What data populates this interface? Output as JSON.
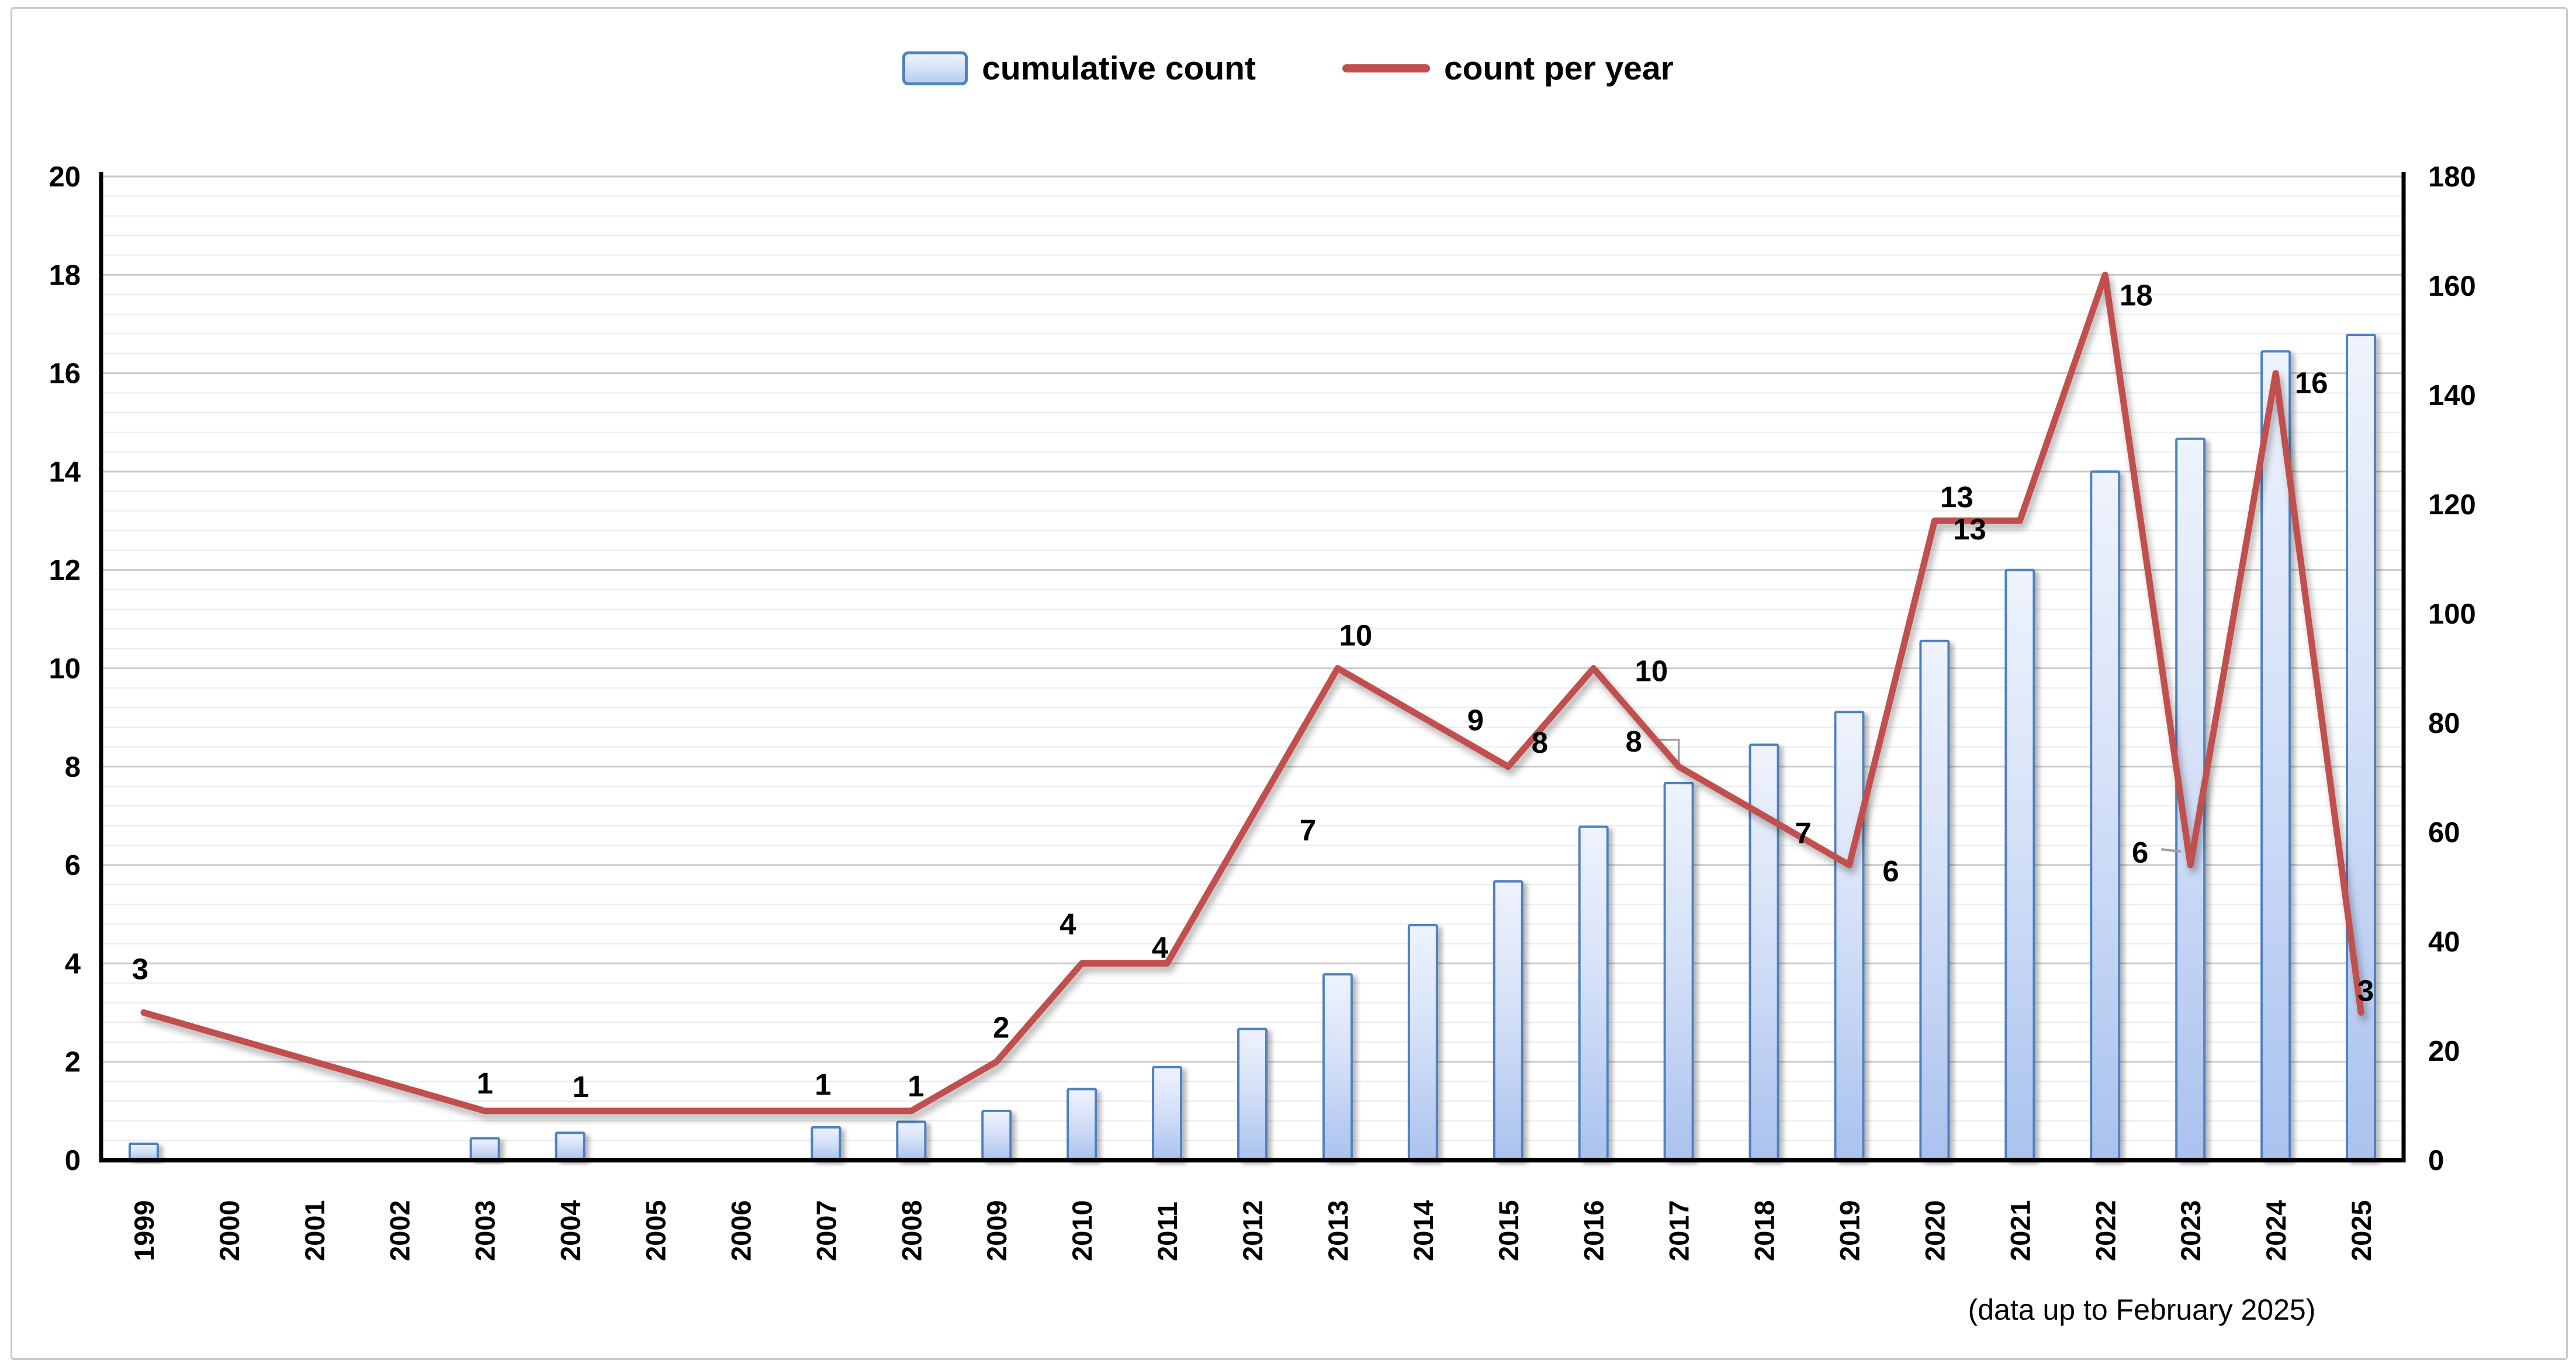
{
  "chart_data": {
    "type": "combo",
    "categories": [
      "1999",
      "2000",
      "2001",
      "2002",
      "2003",
      "2004",
      "2005",
      "2006",
      "2007",
      "2008",
      "2009",
      "2010",
      "2011",
      "2012",
      "2013",
      "2014",
      "2015",
      "2016",
      "2017",
      "2018",
      "2019",
      "2020",
      "2021",
      "2022",
      "2023",
      "2024",
      "2025"
    ],
    "series": [
      {
        "name": "cumulative count",
        "type": "bar",
        "axis": "right",
        "values": [
          3,
          null,
          null,
          null,
          4,
          5,
          null,
          null,
          6,
          7,
          9,
          13,
          17,
          24,
          34,
          43,
          51,
          61,
          69,
          76,
          82,
          95,
          108,
          126,
          132,
          148,
          151
        ]
      },
      {
        "name": "count per year",
        "type": "line",
        "axis": "left",
        "values": [
          3,
          null,
          null,
          null,
          1,
          1,
          null,
          null,
          1,
          1,
          2,
          4,
          4,
          7,
          10,
          9,
          8,
          10,
          8,
          7,
          6,
          13,
          13,
          18,
          6,
          16,
          3
        ],
        "data_labels": [
          "3",
          null,
          null,
          null,
          "1",
          "1",
          null,
          null,
          "1",
          "1",
          "2",
          "4",
          "4",
          "7",
          "10",
          "9",
          "8",
          "10",
          "8",
          "7",
          "6",
          "13",
          "13",
          "18",
          "6",
          "16",
          "3"
        ],
        "label_offsets": {
          "1999": [
            -6,
            -75
          ],
          "2003": [
            0,
            -48
          ],
          "2004": [
            18,
            -42
          ],
          "2007": [
            -5,
            -46
          ],
          "2008": [
            8,
            -43
          ],
          "2009": [
            8,
            -59
          ],
          "2010": [
            -24,
            -68
          ],
          "2011": [
            -12,
            -28
          ],
          "2012": [
            95,
            24
          ],
          "2013": [
            31,
            -57
          ],
          "2014": [
            90,
            4
          ],
          "2015": [
            54,
            -42
          ],
          "2016": [
            99,
            4
          ],
          "2017": [
            -77,
            -44
          ],
          "2018": [
            67,
            29
          ],
          "2019": [
            71,
            10
          ],
          "2020": [
            38,
            -41
          ],
          "2021": [
            -86,
            14
          ],
          "2022": [
            53,
            34
          ],
          "2023": [
            -86,
            -22
          ],
          "2024": [
            61,
            16
          ],
          "2025": [
            8,
            -38
          ]
        }
      }
    ],
    "left_axis": {
      "min": 0,
      "max": 20,
      "major": 2,
      "minor": 0.4,
      "tick_labels": [
        "0",
        "2",
        "4",
        "6",
        "8",
        "10",
        "12",
        "14",
        "16",
        "18",
        "20"
      ]
    },
    "right_axis": {
      "min": 0,
      "max": 180,
      "major": 20,
      "tick_labels": [
        "0",
        "20",
        "40",
        "60",
        "80",
        "100",
        "120",
        "140",
        "160",
        "180"
      ]
    },
    "legend": {
      "position": "top",
      "entries": [
        "cumulative count",
        "count per year"
      ]
    },
    "annotations": {
      "empty_label_box_year": "2017",
      "leader_line_year": "2023"
    },
    "footnote": "(data up to February 2025)",
    "grid": "on"
  },
  "colors": {
    "bar_fill_top": "#eef3fc",
    "bar_fill_mid": "#d6e1f8",
    "bar_fill_bottom": "#aac2ee",
    "bar_border": "#4f81bd",
    "line": "#c0504d",
    "grid_minor": "#ebebeb",
    "grid_major": "#c9c9c9",
    "axis": "#000000",
    "text": "#000000",
    "leader": "#9e9e9e",
    "frame": "#c9c9c9"
  }
}
